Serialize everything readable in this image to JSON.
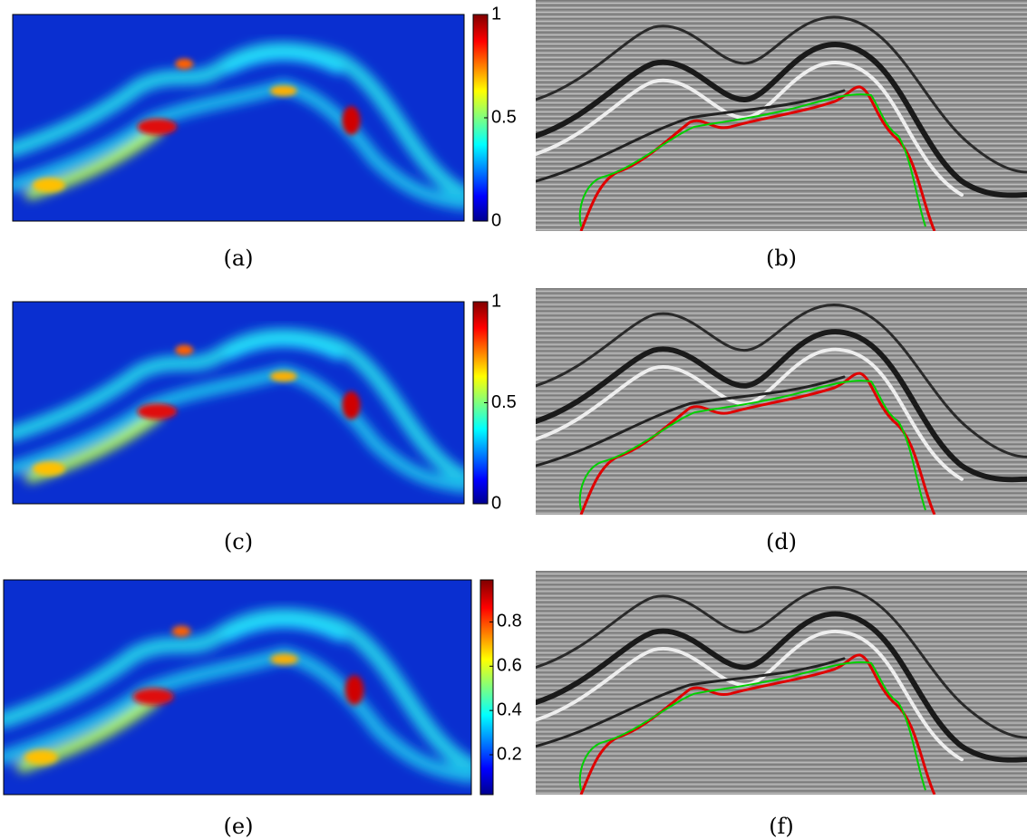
{
  "panels": [
    {
      "caption": "(a)",
      "colorbar": {
        "clim": [
          0,
          1
        ],
        "ticks": [
          0,
          0.5,
          1
        ]
      }
    },
    {
      "caption": "(b)"
    },
    {
      "caption": "(c)",
      "colorbar": {
        "clim": [
          0,
          1
        ],
        "ticks": [
          0,
          0.5,
          1
        ]
      }
    },
    {
      "caption": "(d)"
    },
    {
      "caption": "(e)",
      "colorbar": {
        "clim": [
          0.02,
          0.99
        ],
        "ticks": [
          0.2,
          0.4,
          0.6,
          0.8
        ]
      }
    },
    {
      "caption": "(f)"
    }
  ]
}
